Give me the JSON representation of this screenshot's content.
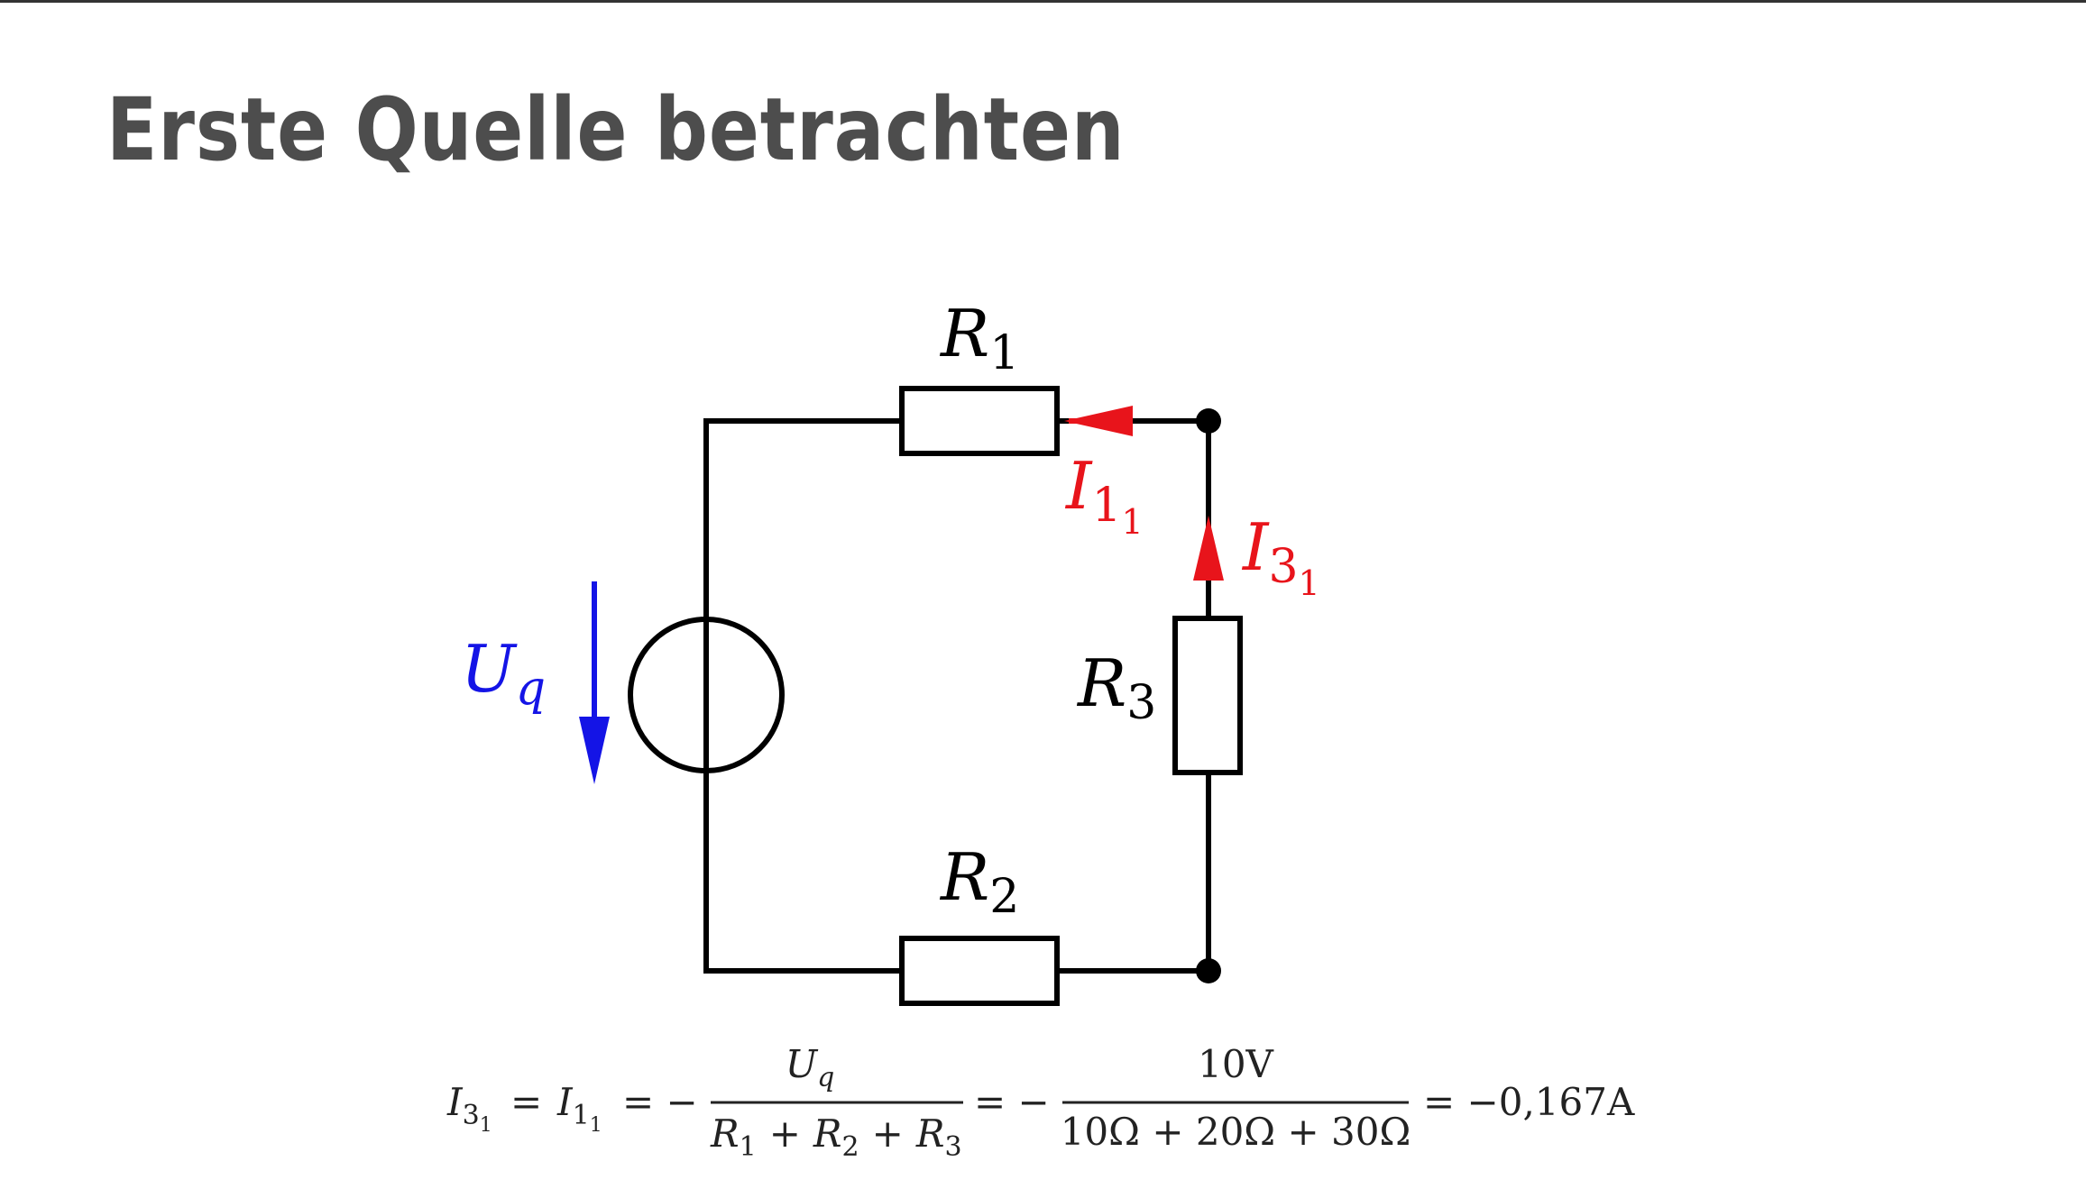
{
  "slide": {
    "title": "Erste Quelle betrachten"
  },
  "circuit": {
    "r1": {
      "base": "R",
      "sub": "1"
    },
    "r2": {
      "base": "R",
      "sub": "2"
    },
    "r3": {
      "base": "R",
      "sub": "3"
    },
    "uq": {
      "base": "U",
      "sub": "q"
    },
    "i11": {
      "base": "I",
      "sub": "1",
      "subsub": "1"
    },
    "i31": {
      "base": "I",
      "sub": "3",
      "subsub": "1"
    },
    "colors": {
      "wire": "#000000",
      "current": "#e8141b",
      "voltage": "#1414e6"
    }
  },
  "formula": {
    "lhs1": {
      "base": "I",
      "sub": "3",
      "subsub": "1"
    },
    "eq1": "=",
    "lhs2": {
      "base": "I",
      "sub": "1",
      "subsub": "1"
    },
    "eq2": "= −",
    "frac1_num": {
      "base": "U",
      "sub": "q"
    },
    "frac1_den": {
      "r1": "R",
      "s1": "1",
      "p1": "+",
      "r2": "R",
      "s2": "2",
      "p2": "+",
      "r3": "R",
      "s3": "3"
    },
    "eq3": "= −",
    "frac2_num": "10V",
    "frac2_den": "10Ω + 20Ω + 30Ω",
    "result": "= −0,167A"
  }
}
